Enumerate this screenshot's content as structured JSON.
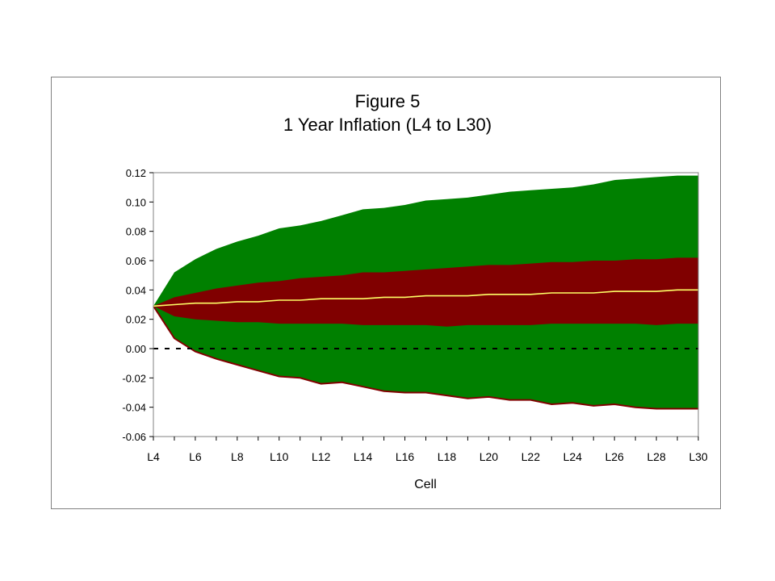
{
  "chart_data": {
    "type": "area",
    "title": "Figure 5",
    "subtitle": "1 Year Inflation (L4 to L30)",
    "xlabel": "Cell",
    "ylabel": "",
    "categories": [
      "L4",
      "L5",
      "L6",
      "L7",
      "L8",
      "L9",
      "L10",
      "L11",
      "L12",
      "L13",
      "L14",
      "L15",
      "L16",
      "L17",
      "L18",
      "L19",
      "L20",
      "L21",
      "L22",
      "L23",
      "L24",
      "L25",
      "L26",
      "L27",
      "L28",
      "L29",
      "L30"
    ],
    "x_tick_labels": [
      "L4",
      "L6",
      "L8",
      "L10",
      "L12",
      "L14",
      "L16",
      "L18",
      "L20",
      "L22",
      "L24",
      "L26",
      "L28",
      "L30"
    ],
    "y_tick_labels": [
      "0.12",
      "0.10",
      "0.08",
      "0.06",
      "0.04",
      "0.02",
      "0.00",
      "-0.02",
      "-0.04",
      "-0.06"
    ],
    "ylim": [
      -0.06,
      0.12
    ],
    "grid": false,
    "legend": "none",
    "series": [
      {
        "role": "outer-upper",
        "values": [
          0.029,
          0.052,
          0.061,
          0.068,
          0.073,
          0.077,
          0.082,
          0.084,
          0.087,
          0.091,
          0.095,
          0.096,
          0.098,
          0.101,
          0.102,
          0.103,
          0.105,
          0.107,
          0.108,
          0.109,
          0.11,
          0.112,
          0.115,
          0.116,
          0.117,
          0.118,
          0.118
        ]
      },
      {
        "role": "inner-upper",
        "values": [
          0.029,
          0.035,
          0.038,
          0.041,
          0.043,
          0.045,
          0.046,
          0.048,
          0.049,
          0.05,
          0.052,
          0.052,
          0.053,
          0.054,
          0.055,
          0.056,
          0.057,
          0.057,
          0.058,
          0.059,
          0.059,
          0.06,
          0.06,
          0.061,
          0.061,
          0.062,
          0.062
        ]
      },
      {
        "role": "median",
        "values": [
          0.029,
          0.03,
          0.031,
          0.031,
          0.032,
          0.032,
          0.033,
          0.033,
          0.034,
          0.034,
          0.034,
          0.035,
          0.035,
          0.036,
          0.036,
          0.036,
          0.037,
          0.037,
          0.037,
          0.038,
          0.038,
          0.038,
          0.039,
          0.039,
          0.039,
          0.04,
          0.04
        ]
      },
      {
        "role": "inner-lower",
        "values": [
          0.029,
          0.022,
          0.02,
          0.019,
          0.018,
          0.018,
          0.017,
          0.017,
          0.017,
          0.017,
          0.016,
          0.016,
          0.016,
          0.016,
          0.015,
          0.016,
          0.016,
          0.016,
          0.016,
          0.017,
          0.017,
          0.017,
          0.017,
          0.017,
          0.016,
          0.017,
          0.017
        ]
      },
      {
        "role": "outer-lower",
        "values": [
          0.029,
          0.007,
          -0.002,
          -0.007,
          -0.011,
          -0.015,
          -0.019,
          -0.02,
          -0.024,
          -0.023,
          -0.026,
          -0.029,
          -0.03,
          -0.03,
          -0.032,
          -0.034,
          -0.033,
          -0.035,
          -0.035,
          -0.038,
          -0.037,
          -0.039,
          -0.038,
          -0.04,
          -0.041,
          -0.041,
          -0.041
        ]
      }
    ],
    "reference_line": {
      "value": 0.0,
      "style": "dashed"
    },
    "colors": {
      "outer_band": "#008000",
      "inner_band": "#800000",
      "median_line": "#ffff66",
      "reference_line": "#000000",
      "outer_lower_edge": "#800000"
    }
  }
}
